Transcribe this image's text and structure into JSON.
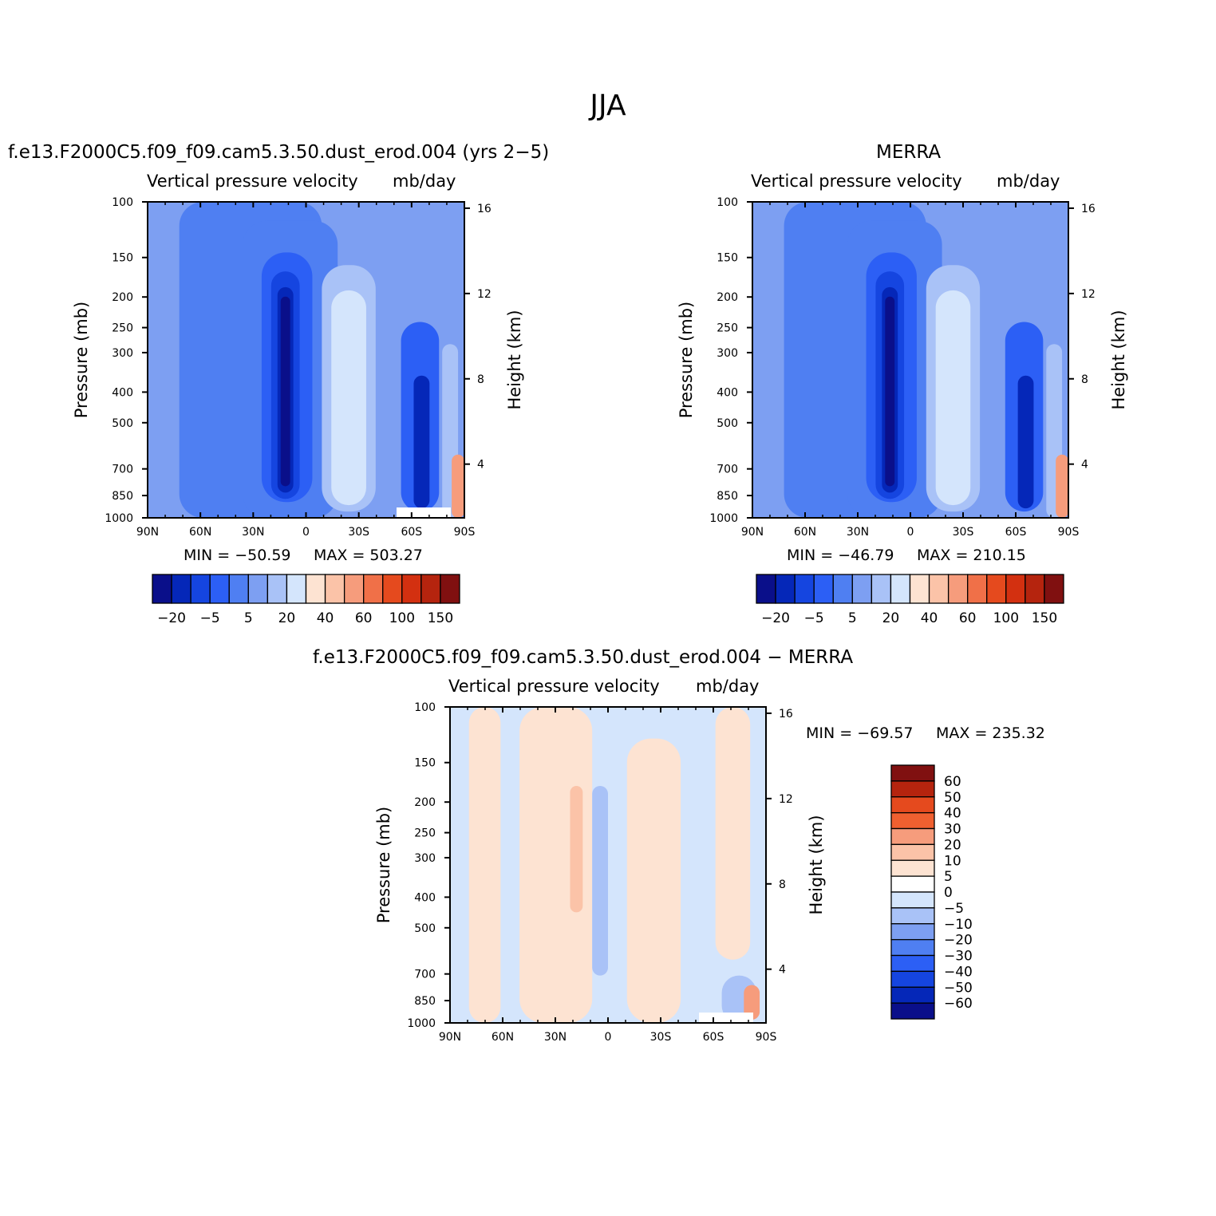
{
  "main_title": "JJA",
  "chart_data": [
    {
      "type": "heatmap",
      "panel_title": "f.e13.F2000C5.f09_f09.cam5.3.50.dust_erod.004 (yrs 2−5)",
      "var_name": "Vertical pressure velocity",
      "units": "mb/day",
      "ylabel": "Pressure (mb)",
      "y2label": "Height (km)",
      "x_ticks": [
        "90N",
        "60N",
        "30N",
        "0",
        "30S",
        "60S",
        "90S"
      ],
      "y_ticks": [
        "100",
        "150",
        "200",
        "250",
        "300",
        "400",
        "500",
        "700",
        "850",
        "1000"
      ],
      "y2_ticks": [
        "16",
        "12",
        "8",
        "4"
      ],
      "ylim": [
        1000,
        100
      ],
      "min_label": "MIN = −50.59",
      "max_label": "MAX = 503.27",
      "colorbar_labels": [
        "−20",
        "−5",
        "5",
        "20",
        "40",
        "60",
        "100",
        "150"
      ],
      "colorbar_colors": [
        "#0a0f8a",
        "#0527b8",
        "#1545e0",
        "#2c5ff5",
        "#4f7ff2",
        "#7d9ff2",
        "#a9c2f7",
        "#d4e5fc",
        "#fde3d2",
        "#fbc3a8",
        "#f69c7c",
        "#f07048",
        "#e54a1e",
        "#d33010",
        "#b5240e",
        "#801010"
      ]
    },
    {
      "type": "heatmap",
      "panel_title": "MERRA",
      "var_name": "Vertical pressure velocity",
      "units": "mb/day",
      "ylabel": "Pressure (mb)",
      "y2label": "Height (km)",
      "x_ticks": [
        "90N",
        "60N",
        "30N",
        "0",
        "30S",
        "60S",
        "90S"
      ],
      "y_ticks": [
        "100",
        "150",
        "200",
        "250",
        "300",
        "400",
        "500",
        "700",
        "850",
        "1000"
      ],
      "y2_ticks": [
        "16",
        "12",
        "8",
        "4"
      ],
      "ylim": [
        1000,
        100
      ],
      "min_label": "MIN = −46.79",
      "max_label": "MAX = 210.15",
      "colorbar_labels": [
        "−20",
        "−5",
        "5",
        "20",
        "40",
        "60",
        "100",
        "150"
      ],
      "colorbar_colors": [
        "#0a0f8a",
        "#0527b8",
        "#1545e0",
        "#2c5ff5",
        "#4f7ff2",
        "#7d9ff2",
        "#a9c2f7",
        "#d4e5fc",
        "#fde3d2",
        "#fbc3a8",
        "#f69c7c",
        "#f07048",
        "#e54a1e",
        "#d33010",
        "#b5240e",
        "#801010"
      ]
    },
    {
      "type": "heatmap",
      "panel_title": "f.e13.F2000C5.f09_f09.cam5.3.50.dust_erod.004 − MERRA",
      "var_name": "Vertical pressure velocity",
      "units": "mb/day",
      "ylabel": "Pressure (mb)",
      "y2label": "Height (km)",
      "x_ticks": [
        "90N",
        "60N",
        "30N",
        "0",
        "30S",
        "60S",
        "90S"
      ],
      "y_ticks": [
        "100",
        "150",
        "200",
        "250",
        "300",
        "400",
        "500",
        "700",
        "850",
        "1000"
      ],
      "y2_ticks": [
        "16",
        "12",
        "8",
        "4"
      ],
      "ylim": [
        1000,
        100
      ],
      "min_label": "MIN = −69.57",
      "max_label": "MAX = 235.32",
      "colorbar_labels": [
        "60",
        "50",
        "40",
        "30",
        "20",
        "10",
        "5",
        "0",
        "−5",
        "−10",
        "−20",
        "−30",
        "−40",
        "−50",
        "−60"
      ],
      "colorbar_colors": [
        "#801010",
        "#b5240e",
        "#e54a1e",
        "#f06030",
        "#f69c7c",
        "#fbc3a8",
        "#fde3d2",
        "#ffffff",
        "#d4e5fc",
        "#a9c2f7",
        "#7d9ff2",
        "#4f7ff2",
        "#2c5ff5",
        "#1545e0",
        "#0527b8",
        "#0a0f8a"
      ]
    }
  ]
}
